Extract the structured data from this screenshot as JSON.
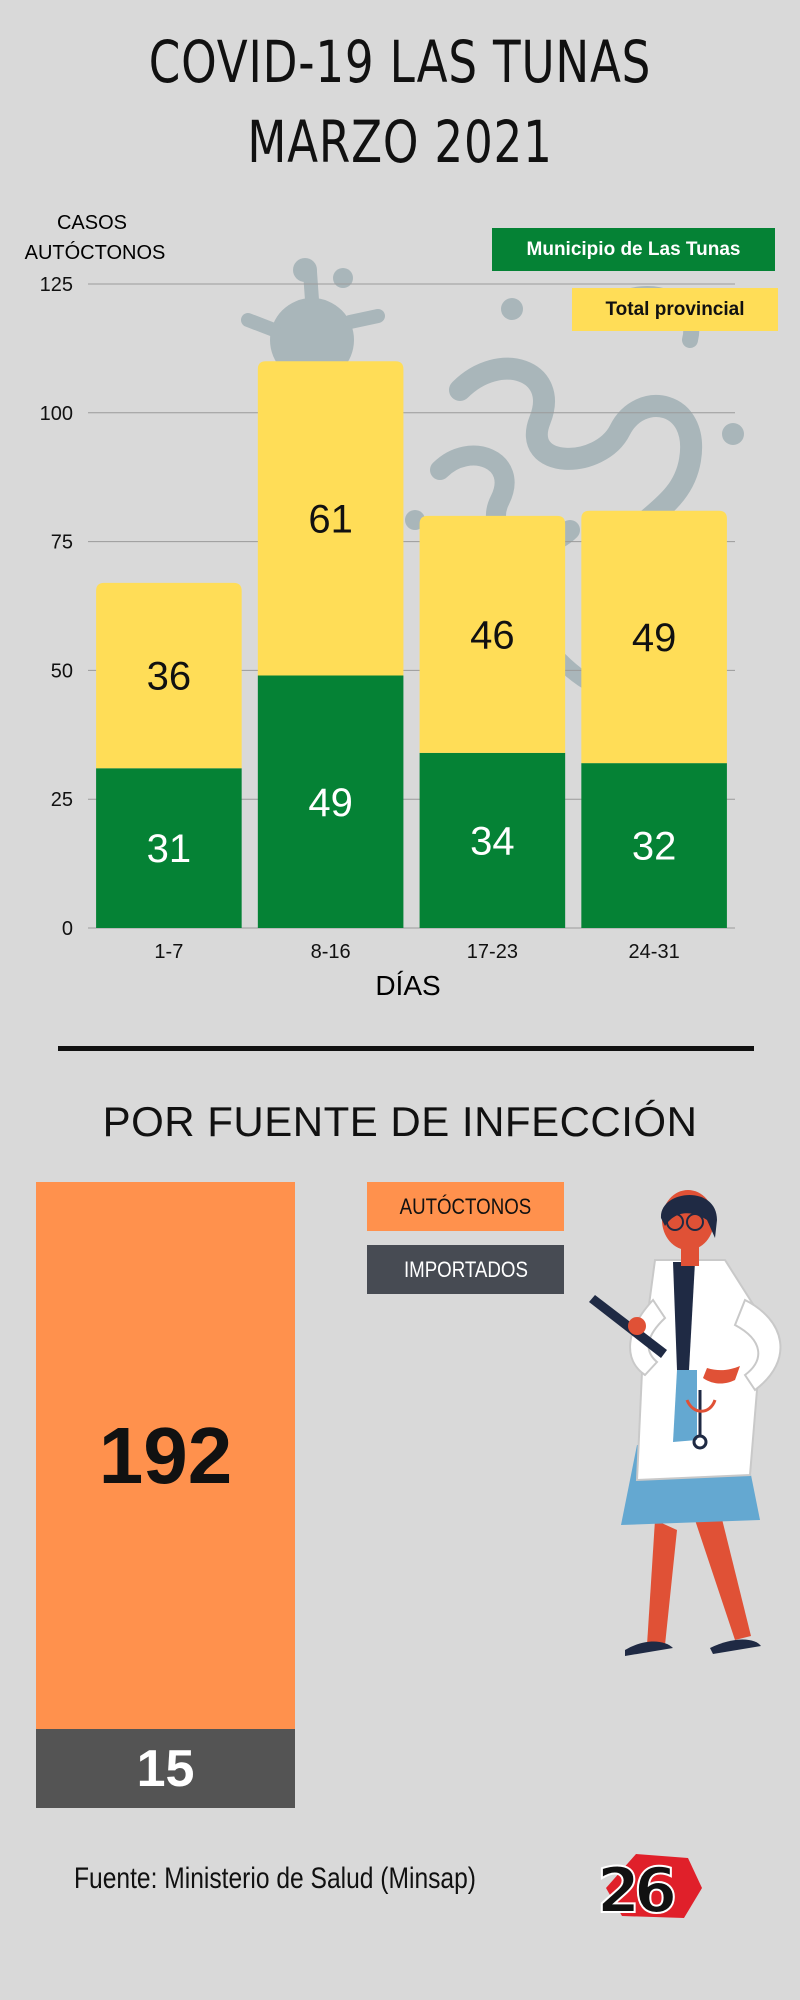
{
  "title": {
    "line1": "COVID-19 LAS TUNAS",
    "line2": "MARZO 2021"
  },
  "chart_data": {
    "type": "bar",
    "stacked": true,
    "ylabel_lines": [
      "CASOS",
      "AUTÓCTONOS"
    ],
    "xlabel": "DÍAS",
    "categories": [
      "1-7",
      "8-16",
      "17-23",
      "24-31"
    ],
    "ylim": [
      0,
      125
    ],
    "yticks": [
      0,
      25,
      50,
      75,
      100,
      125
    ],
    "grid": true,
    "legend_placement": "top-right",
    "series": [
      {
        "name": "Municipio  de Las Tunas",
        "values": [
          31,
          49,
          34,
          32
        ],
        "color": "#058235",
        "label_color": "#ffffff"
      },
      {
        "name": "Total provincial",
        "values": [
          36,
          61,
          46,
          49
        ],
        "color": "#ffdd57",
        "label_color": "#111111"
      }
    ]
  },
  "section2": {
    "title": "POR FUENTE DE INFECCIÓN",
    "autoctonos": {
      "label": "AUTÓCTONOS",
      "value": "192",
      "color": "#ff914d"
    },
    "importados": {
      "label": "IMPORTADOS",
      "value": "15",
      "color": "#545454"
    }
  },
  "footer": {
    "source": "Fuente: Ministerio de Salud (Minsap)",
    "logo_text": "26"
  },
  "icons": [
    "virus-icon",
    "doctor-illustration",
    "logo-26-icon"
  ]
}
